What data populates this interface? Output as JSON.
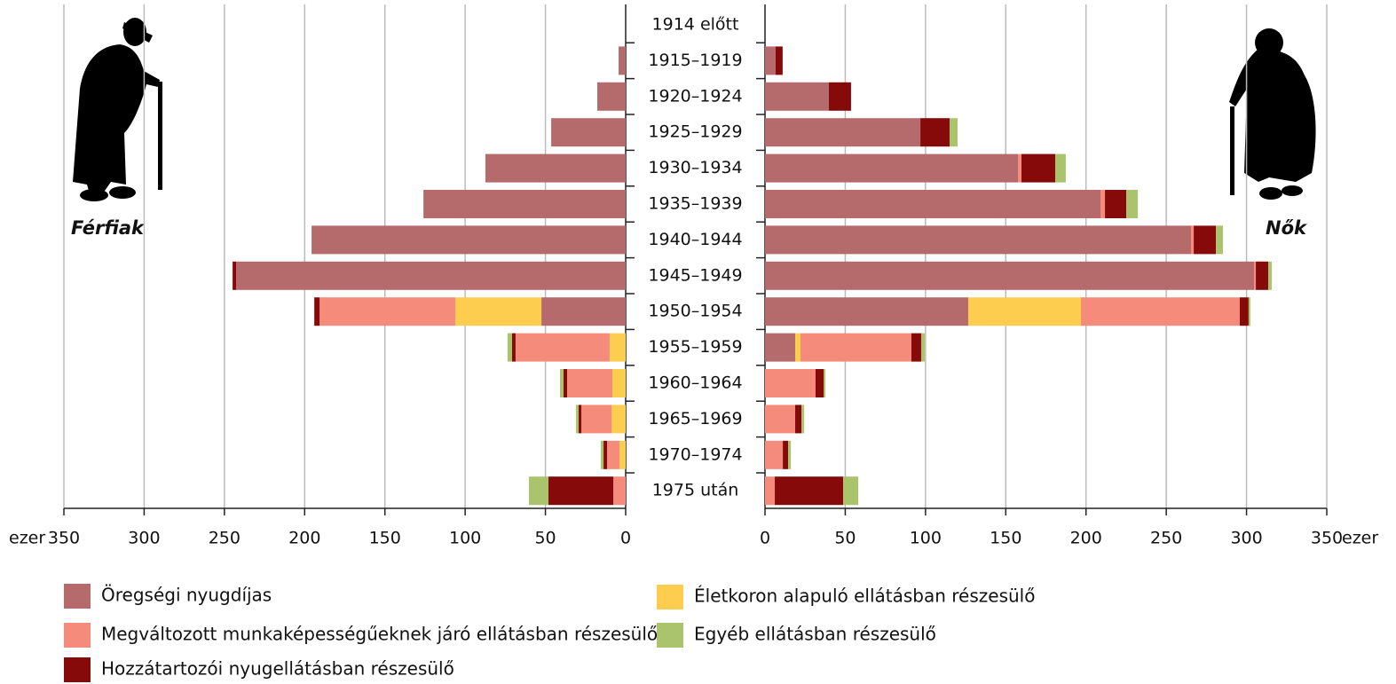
{
  "chart_data": {
    "type": "bar",
    "categories": [
      "1914 előtt",
      "1915–1919",
      "1920–1924",
      "1925–1929",
      "1930–1934",
      "1935–1939",
      "1940–1944",
      "1945–1949",
      "1950–1954",
      "1955–1959",
      "1960–1964",
      "1965–1969",
      "1970–1974",
      "1975 után"
    ],
    "xlim": [
      0,
      350
    ],
    "xticks": [
      0,
      50,
      100,
      150,
      200,
      250,
      300,
      350
    ],
    "xlabel": "ezer",
    "grid": true,
    "series": [
      {
        "name": "Öregségi nyugdíjas",
        "color": "#b56b6b"
      },
      {
        "name": "Életkoron alapuló ellátásban részesülő",
        "color": "#fdcd4f"
      },
      {
        "name": "Megváltozott munkaképességűeknek járó ellátásban részesülő",
        "color": "#f48b7b"
      },
      {
        "name": "Hozzátartozói nyugellátásban részesülő",
        "color": "#870a0a"
      },
      {
        "name": "Egyéb ellátásban részesülő",
        "color": "#a9c46c"
      }
    ],
    "panels": [
      {
        "label": "Férfiak",
        "side": "left",
        "values": [
          [
            0,
            4.4,
            17.7,
            46.4,
            87.4,
            126,
            195.7,
            242.7,
            52.5,
            0,
            0,
            0,
            0,
            0
          ],
          [
            0,
            0,
            0,
            0,
            0,
            0,
            0,
            0,
            53.6,
            10,
            8.3,
            8.8,
            3.9,
            0
          ],
          [
            0,
            0,
            0,
            0,
            0,
            0,
            0,
            0,
            84.6,
            58.6,
            28.2,
            18.8,
            7.7,
            7.7
          ],
          [
            0,
            0,
            0,
            0,
            0,
            0,
            0,
            2.2,
            3.3,
            2.2,
            2.2,
            1.7,
            2.2,
            40.4
          ],
          [
            0,
            0,
            0,
            0,
            0,
            0,
            0,
            0,
            0,
            2.8,
            2.2,
            1.7,
            1.7,
            12.2
          ]
        ]
      },
      {
        "label": "Nők",
        "side": "right",
        "values": [
          [
            0,
            6.6,
            39.8,
            96.8,
            157.6,
            209,
            265.4,
            304.7,
            126.6,
            18.8,
            0,
            0,
            0,
            0
          ],
          [
            0,
            0,
            0,
            0,
            0,
            0,
            0,
            0,
            70.2,
            3.3,
            0,
            0,
            0,
            0
          ],
          [
            0,
            0,
            0,
            0,
            2.2,
            2.8,
            1.7,
            1.1,
            99,
            69.1,
            31.5,
            18.8,
            11.1,
            6.1
          ],
          [
            0,
            4.4,
            13.8,
            18.2,
            21,
            13.3,
            13.8,
            7.7,
            5.5,
            6.1,
            5,
            3.9,
            3.3,
            42.6
          ],
          [
            0,
            0,
            0,
            5,
            6.6,
            7.2,
            4.4,
            2.2,
            1.1,
            2.2,
            1.1,
            1.7,
            1.7,
            9.4
          ]
        ]
      }
    ]
  }
}
